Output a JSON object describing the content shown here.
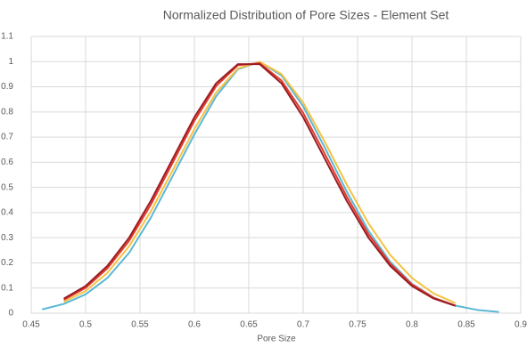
{
  "chart_data": {
    "type": "line",
    "title": "Normalized Distribution of Pore Sizes - Element Set",
    "x_label": "Pore Size",
    "x": [
      0.46,
      0.48,
      0.5,
      0.52,
      0.54,
      0.56,
      0.58,
      0.6,
      0.62,
      0.64,
      0.66,
      0.68,
      0.7,
      0.72,
      0.74,
      0.76,
      0.78,
      0.8,
      0.82,
      0.84,
      0.86,
      0.88
    ],
    "series": [
      {
        "color": "#5bb8d4",
        "values": [
          0.015,
          0.037,
          0.075,
          0.14,
          0.24,
          0.38,
          0.545,
          0.711,
          0.862,
          0.97,
          0.999,
          0.945,
          0.822,
          0.657,
          0.484,
          0.328,
          0.204,
          0.117,
          0.062,
          0.03,
          0.013,
          0.005
        ]
      },
      {
        "color": "#f5c242",
        "values": [
          null,
          0.045,
          0.088,
          0.16,
          0.266,
          0.405,
          0.567,
          0.732,
          0.877,
          0.973,
          0.999,
          0.951,
          0.837,
          0.68,
          0.512,
          0.357,
          0.232,
          0.14,
          0.078,
          0.04,
          null,
          null
        ]
      },
      {
        "color": "#e03a2a",
        "values": [
          null,
          0.053,
          0.101,
          0.178,
          0.288,
          0.432,
          0.598,
          0.765,
          0.903,
          0.986,
          0.994,
          0.925,
          0.796,
          0.632,
          0.464,
          0.314,
          0.197,
          0.114,
          0.061,
          0.03,
          null,
          null
        ]
      },
      {
        "color": "#9b1c24",
        "values": [
          null,
          0.058,
          0.108,
          0.188,
          0.3,
          0.447,
          0.613,
          0.779,
          0.914,
          0.99,
          0.99,
          0.914,
          0.779,
          0.613,
          0.447,
          0.3,
          0.188,
          0.108,
          0.058,
          0.029,
          null,
          null
        ]
      }
    ],
    "xlim": [
      0.45,
      0.9
    ],
    "xticks": [
      0.45,
      0.5,
      0.55,
      0.6,
      0.65,
      0.7,
      0.75,
      0.8,
      0.85,
      0.9
    ],
    "ylim": [
      0,
      1.1
    ],
    "yticks": [
      0,
      0.1,
      0.2,
      0.3,
      0.4,
      0.5,
      0.6,
      0.7,
      0.8,
      0.9,
      1,
      1.1
    ],
    "grid": true
  }
}
